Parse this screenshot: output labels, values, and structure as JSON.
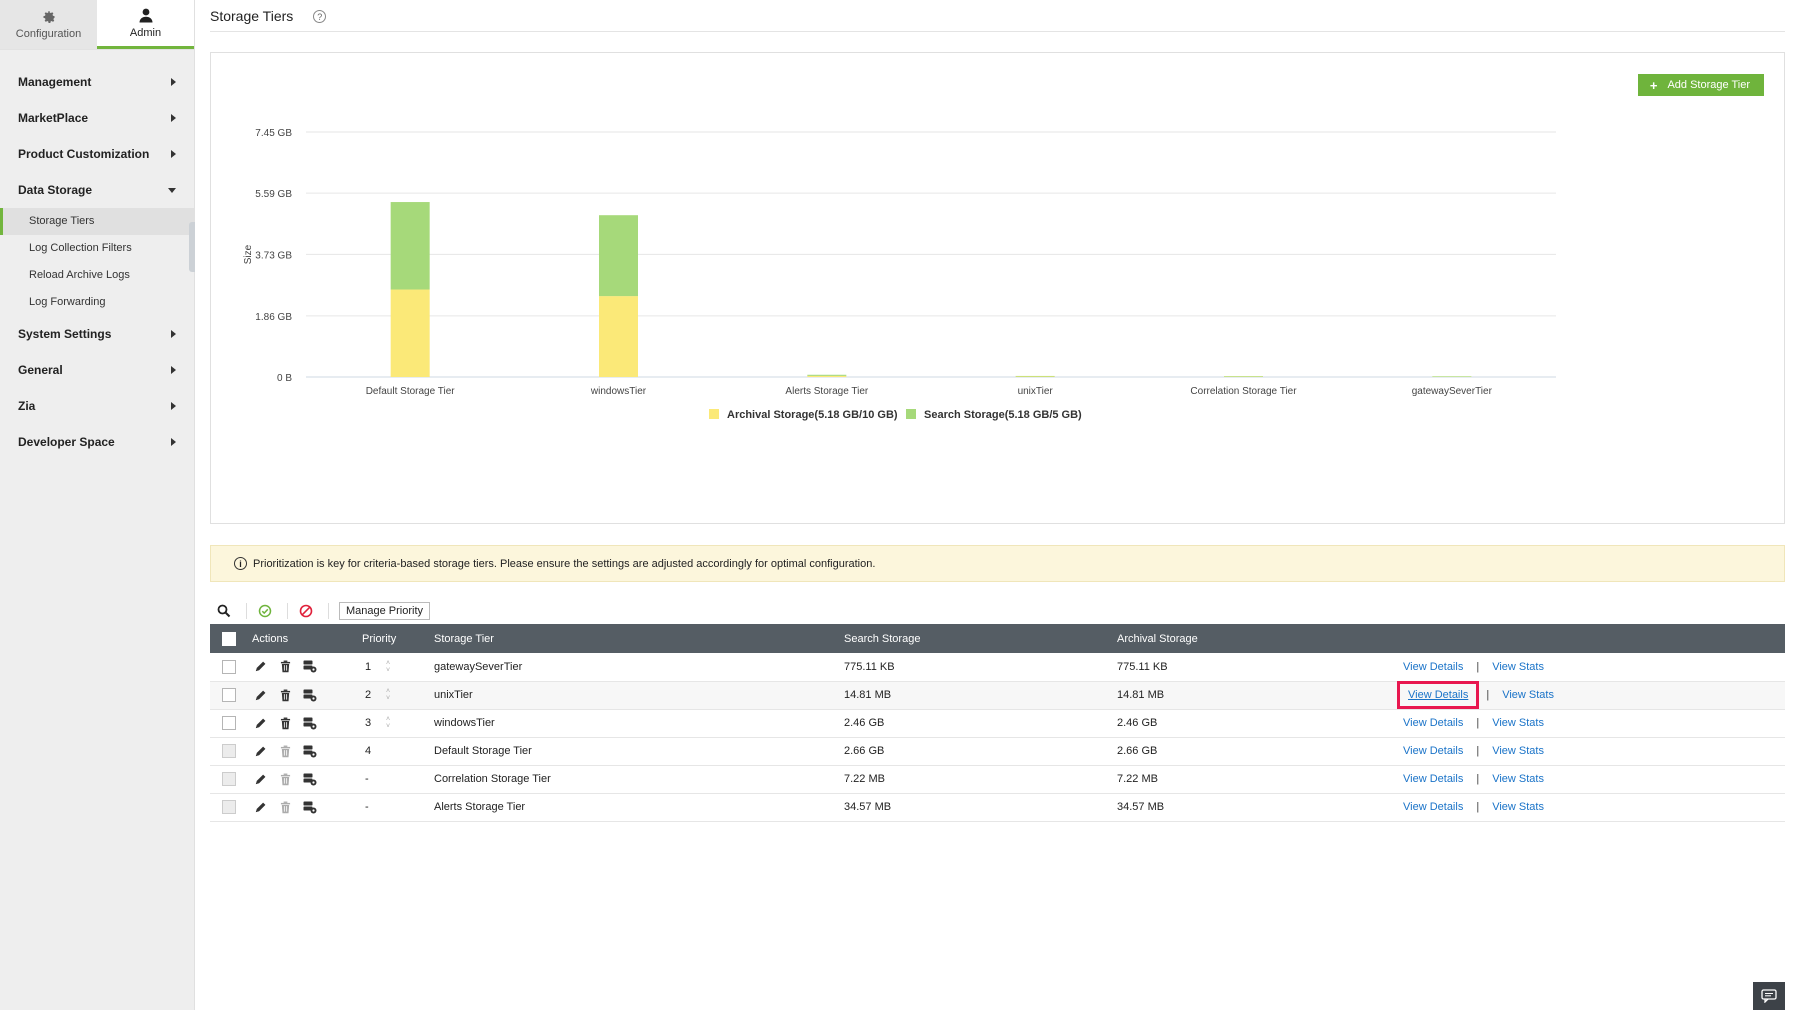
{
  "side_tabs": [
    {
      "label": "Configuration",
      "icon": "gear-icon"
    },
    {
      "label": "Admin",
      "icon": "user-icon"
    }
  ],
  "menu": [
    {
      "label": "Management"
    },
    {
      "label": "MarketPlace"
    },
    {
      "label": "Product Customization"
    },
    {
      "label": "Data Storage",
      "expanded": true,
      "children": [
        "Storage Tiers",
        "Log Collection Filters",
        "Reload Archive Logs",
        "Log Forwarding"
      ]
    },
    {
      "label": "System Settings"
    },
    {
      "label": "General"
    },
    {
      "label": "Zia"
    },
    {
      "label": "Developer Space"
    }
  ],
  "page": {
    "title": "Storage Tiers",
    "help": "?",
    "add_button": "Add Storage Tier",
    "notice": "Prioritization is key for criteria-based storage tiers. Please ensure the settings are adjusted accordingly for optimal configuration.",
    "info_glyph": "i",
    "manage_priority": "Manage Priority"
  },
  "chart_data": {
    "type": "bar",
    "stacked": true,
    "categories": [
      "Default Storage Tier",
      "windowsTier",
      "Alerts Storage Tier",
      "unixTier",
      "Correlation Storage Tier",
      "gatewaySeverTier"
    ],
    "series": [
      {
        "name": "Archival Storage(5.18 GB/10 GB)",
        "color": "#fbe978",
        "values_gb": [
          2.66,
          2.46,
          0.034,
          0.014,
          0.007,
          0.0007
        ]
      },
      {
        "name": "Search Storage(5.18 GB/5 GB)",
        "color": "#a6d97a",
        "values_gb": [
          2.66,
          2.46,
          0.034,
          0.014,
          0.007,
          0.0007
        ]
      }
    ],
    "ylabel": "Size",
    "yticks": [
      "0 B",
      "1.86 GB",
      "3.73 GB",
      "5.59 GB",
      "7.45 GB"
    ],
    "yticks_gb": [
      0,
      1.86,
      3.73,
      5.59,
      7.45
    ],
    "ylim": [
      0,
      7.45
    ],
    "legend_placement": "bottom-center",
    "grid": true
  },
  "table": {
    "headers": {
      "actions": "Actions",
      "priority": "Priority",
      "tier": "Storage Tier",
      "search": "Search Storage",
      "archival": "Archival Storage"
    },
    "view_details": "View Details",
    "view_stats": "View Stats",
    "separator": "|",
    "spinner_up": "˄",
    "spinner_down": "˅",
    "rows": [
      {
        "priority": "1",
        "tier": "gatewaySeverTier",
        "search": "775.11 KB",
        "archival": "775.11 KB",
        "editable": true
      },
      {
        "priority": "2",
        "tier": "unixTier",
        "search": "14.81 MB",
        "archival": "14.81 MB",
        "editable": true,
        "highlighted": true
      },
      {
        "priority": "3",
        "tier": "windowsTier",
        "search": "2.46 GB",
        "archival": "2.46 GB",
        "editable": true
      },
      {
        "priority": "4",
        "tier": "Default Storage Tier",
        "search": "2.66 GB",
        "archival": "2.66 GB",
        "editable": false
      },
      {
        "priority": "-",
        "tier": "Correlation Storage Tier",
        "search": "7.22 MB",
        "archival": "7.22 MB",
        "editable": false
      },
      {
        "priority": "-",
        "tier": "Alerts Storage Tier",
        "search": "34.57 MB",
        "archival": "34.57 MB",
        "editable": false
      }
    ]
  }
}
